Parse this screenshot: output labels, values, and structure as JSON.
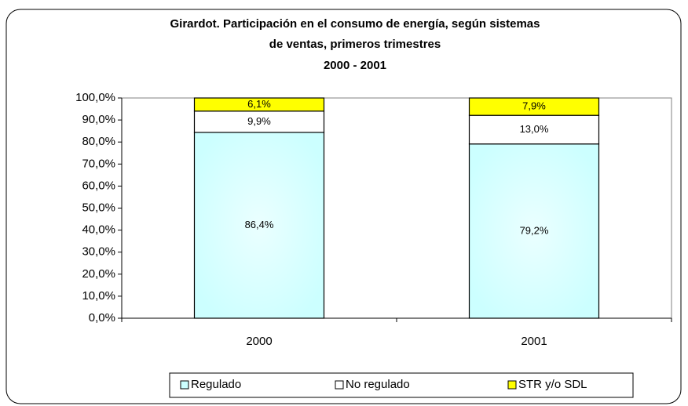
{
  "chart_data": {
    "type": "bar",
    "stacking": "percent",
    "title": [
      "Girardot. Participación en el consumo de energía,  según sistemas",
      "de ventas, primeros trimestres",
      "2000 - 2001"
    ],
    "categories": [
      "2000",
      "2001"
    ],
    "series": [
      {
        "name": "Regulado",
        "color": "#ccffff",
        "values": [
          86.4,
          79.2
        ],
        "value_labels": [
          "86,4%",
          "79,2%"
        ]
      },
      {
        "name": "No regulado",
        "color": "#ffffff",
        "values": [
          9.9,
          13.0
        ],
        "value_labels": [
          "9,9%",
          "13,0%"
        ]
      },
      {
        "name": "STR y/o SDL",
        "color": "#ffff00",
        "values": [
          6.1,
          7.9
        ],
        "value_labels": [
          "6,1%",
          "7,9%"
        ]
      }
    ],
    "ylim": [
      0,
      100
    ],
    "yticks": [
      {
        "value": 0,
        "label": "0,0%"
      },
      {
        "value": 10,
        "label": "10,0%"
      },
      {
        "value": 20,
        "label": "20,0%"
      },
      {
        "value": 30,
        "label": "30,0%"
      },
      {
        "value": 40,
        "label": "40,0%"
      },
      {
        "value": 50,
        "label": "50,0%"
      },
      {
        "value": 60,
        "label": "60,0%"
      },
      {
        "value": 70,
        "label": "70,0%"
      },
      {
        "value": 80,
        "label": "80,0%"
      },
      {
        "value": 90,
        "label": "90,0%"
      },
      {
        "value": 100,
        "label": "100,0%"
      }
    ],
    "legend": "bottom"
  }
}
